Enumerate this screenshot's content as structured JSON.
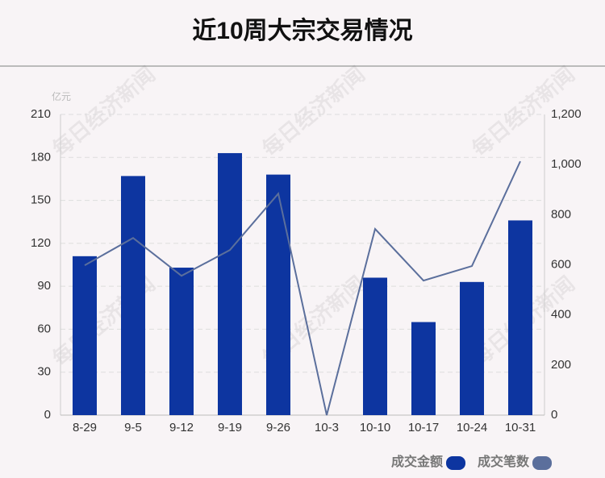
{
  "chart_data": {
    "type": "bar-line",
    "title": "近10周大宗交易情况",
    "y_unit": "亿元",
    "watermark": "每日经济新闻",
    "categories": [
      "8-29",
      "9-5",
      "9-12",
      "9-19",
      "9-26",
      "10-3",
      "10-10",
      "10-17",
      "10-24",
      "10-31"
    ],
    "series": [
      {
        "name": "成交金额",
        "type": "bar",
        "color": "#0d35a0",
        "values": [
          111,
          167,
          103,
          183,
          168,
          0,
          96,
          65,
          93,
          136
        ]
      },
      {
        "name": "成交笔数",
        "type": "line",
        "axis": "y2",
        "color": "#5b6f9c",
        "values": [
          598,
          707,
          556,
          659,
          884,
          0,
          743,
          537,
          595,
          1013
        ]
      }
    ],
    "ylim": [
      0,
      210
    ],
    "yticks": [
      0,
      30,
      60,
      90,
      120,
      150,
      180,
      210
    ],
    "y2lim": [
      0,
      1200
    ],
    "y2ticks": [
      0,
      200,
      400,
      600,
      800,
      {
        "value": 1000,
        "label": "1,000"
      },
      {
        "value": 1200,
        "label": "1,200"
      }
    ],
    "grid": true,
    "legend": "bottom-right"
  }
}
